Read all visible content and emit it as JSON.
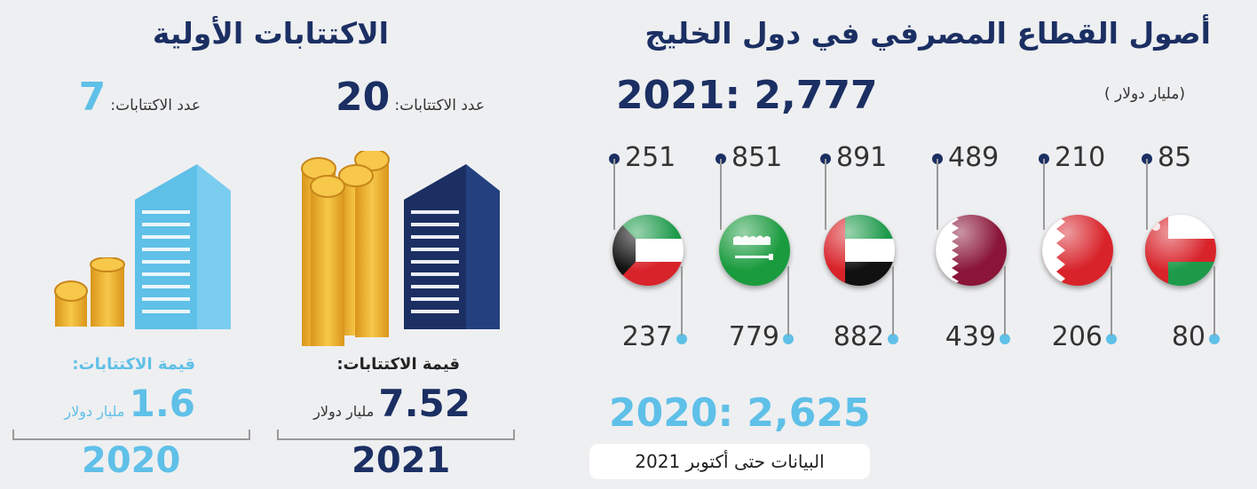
{
  "banking": {
    "title": "أصول القطاع المصرفي في دول الخليج",
    "unit": "(مليار دولار )",
    "total_2021": "2021: 2,777",
    "total_2020": "2020: 2,625",
    "note": "البيانات حتى أكتوبر 2021"
  },
  "ipo": {
    "title": "الاكتتابات الأولية",
    "y2021": {
      "year": "2021",
      "count_label": "عدد الاكتتابات:",
      "count": "20",
      "value_label": "قيمة الاكتتابات:",
      "value": "7.52",
      "value_unit": "مليار دولار"
    },
    "y2020": {
      "year": "2020",
      "count_label": "عدد الاكتتابات:",
      "count": "7",
      "value_label": "قيمة الاكتتابات:",
      "value": "1.6",
      "value_unit": "مليار دولار"
    }
  },
  "colors": {
    "navy": "#1b2f63",
    "sky": "#5fc0e8",
    "gold": "#f2b01e"
  },
  "chart_data": {
    "type": "table",
    "title": "أصول القطاع المصرفي في دول الخليج",
    "unit": "(مليار دولار )",
    "categories": [
      "kuwait-flag",
      "saudi-arabia-flag",
      "uae-flag",
      "qatar-flag",
      "bahrain-flag",
      "oman-flag"
    ],
    "series": [
      {
        "name": "2021",
        "values": [
          251,
          851,
          891,
          489,
          210,
          85
        ]
      },
      {
        "name": "2020",
        "values": [
          237,
          779,
          882,
          439,
          206,
          80
        ]
      }
    ],
    "labels_2021": [
      "251",
      "851",
      "891",
      "489",
      "210",
      "85"
    ],
    "labels_2020": [
      "237",
      "779",
      "882",
      "439",
      "206",
      "80"
    ]
  }
}
